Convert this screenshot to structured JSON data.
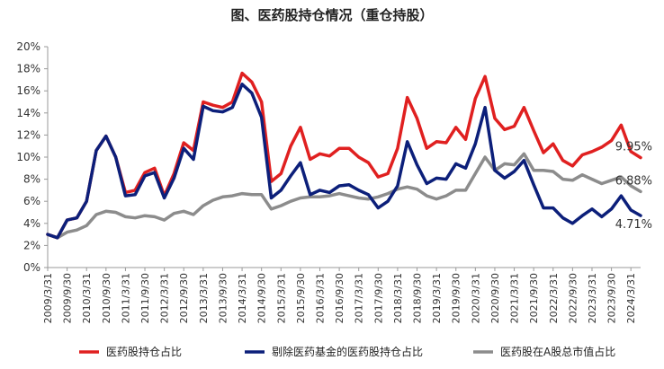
{
  "chart_data": {
    "type": "line",
    "title": "图、医药股持仓情况（重仓持股）",
    "ylim": [
      0,
      20
    ],
    "y_ticks": [
      "0%",
      "2%",
      "4%",
      "6%",
      "8%",
      "10%",
      "12%",
      "14%",
      "16%",
      "18%",
      "20%"
    ],
    "x_tick_labels": [
      "2009/3/31",
      "2009/9/30",
      "2010/3/31",
      "2010/9/30",
      "2011/3/31",
      "2011/9/30",
      "2012/3/31",
      "2012/9/30",
      "2013/3/31",
      "2013/9/30",
      "2014/3/31",
      "2014/9/30",
      "2015/3/31",
      "2015/9/30",
      "2016/3/31",
      "2016/9/30",
      "2017/3/31",
      "2017/9/30",
      "2018/3/31",
      "2018/9/30",
      "2019/3/31",
      "2019/9/30",
      "2020/3/31",
      "2020/9/30",
      "2021/3/31",
      "2021/9/30",
      "2022/3/31",
      "2022/9/30",
      "2023/3/31",
      "2023/9/30",
      "2024/3/31"
    ],
    "x": [
      "2009Q1",
      "2009Q2",
      "2009Q3",
      "2009Q4",
      "2010Q1",
      "2010Q2",
      "2010Q3",
      "2010Q4",
      "2011Q1",
      "2011Q2",
      "2011Q3",
      "2011Q4",
      "2012Q1",
      "2012Q2",
      "2012Q3",
      "2012Q4",
      "2013Q1",
      "2013Q2",
      "2013Q3",
      "2013Q4",
      "2014Q1",
      "2014Q2",
      "2014Q3",
      "2014Q4",
      "2015Q1",
      "2015Q2",
      "2015Q3",
      "2015Q4",
      "2016Q1",
      "2016Q2",
      "2016Q3",
      "2016Q4",
      "2017Q1",
      "2017Q2",
      "2017Q3",
      "2017Q4",
      "2018Q1",
      "2018Q2",
      "2018Q3",
      "2018Q4",
      "2019Q1",
      "2019Q2",
      "2019Q3",
      "2019Q4",
      "2020Q1",
      "2020Q2",
      "2020Q3",
      "2020Q4",
      "2021Q1",
      "2021Q2",
      "2021Q3",
      "2021Q4",
      "2022Q1",
      "2022Q2",
      "2022Q3",
      "2022Q4",
      "2023Q1",
      "2023Q2",
      "2023Q3",
      "2023Q4",
      "2024Q1",
      "2024Q2"
    ],
    "series": [
      {
        "name": "医药股持仓占比",
        "color": "#e02020",
        "end_label": "9.95%",
        "values": [
          3.0,
          2.7,
          4.3,
          4.5,
          6.0,
          10.6,
          11.9,
          10.0,
          6.8,
          7.0,
          8.6,
          9.0,
          6.5,
          8.5,
          11.3,
          10.6,
          15.0,
          14.7,
          14.5,
          15.0,
          17.6,
          16.8,
          15.0,
          7.8,
          8.5,
          11.0,
          12.7,
          9.8,
          10.3,
          10.1,
          10.8,
          10.8,
          10.0,
          9.5,
          8.2,
          8.5,
          10.8,
          15.4,
          13.5,
          10.8,
          11.4,
          11.3,
          12.7,
          11.6,
          15.3,
          17.3,
          13.5,
          12.5,
          12.8,
          14.5,
          12.4,
          10.4,
          11.2,
          9.7,
          9.2,
          10.2,
          10.5,
          10.9,
          11.5,
          12.9,
          10.5,
          9.95
        ]
      },
      {
        "name": "剔除医药基金的医药股持仓占比",
        "color": "#0c1f7a",
        "end_label": "4.71%",
        "values": [
          3.0,
          2.7,
          4.3,
          4.5,
          6.0,
          10.6,
          11.9,
          10.0,
          6.5,
          6.6,
          8.3,
          8.6,
          6.3,
          8.1,
          10.8,
          9.8,
          14.6,
          14.2,
          14.1,
          14.5,
          16.6,
          15.8,
          13.6,
          6.3,
          7.0,
          8.3,
          9.5,
          6.6,
          7.0,
          6.8,
          7.4,
          7.5,
          7.0,
          6.6,
          5.4,
          6.0,
          7.4,
          11.4,
          9.3,
          7.6,
          8.1,
          8.0,
          9.4,
          9.0,
          11.2,
          14.5,
          8.8,
          8.1,
          8.7,
          9.7,
          7.5,
          5.4,
          5.4,
          4.5,
          4.0,
          4.7,
          5.3,
          4.6,
          5.3,
          6.5,
          5.2,
          4.71
        ]
      },
      {
        "name": "医药股在A股总市值占比",
        "color": "#8c8c8c",
        "end_label": "6.88%",
        "values": [
          3.0,
          2.7,
          3.2,
          3.4,
          3.8,
          4.8,
          5.1,
          5.0,
          4.6,
          4.5,
          4.7,
          4.6,
          4.3,
          4.9,
          5.1,
          4.8,
          5.6,
          6.1,
          6.4,
          6.5,
          6.7,
          6.6,
          6.6,
          5.3,
          5.6,
          6.0,
          6.3,
          6.4,
          6.4,
          6.5,
          6.7,
          6.5,
          6.3,
          6.2,
          6.4,
          6.7,
          7.1,
          7.3,
          7.1,
          6.5,
          6.2,
          6.5,
          7.0,
          7.0,
          8.5,
          10.0,
          8.8,
          9.4,
          9.3,
          10.3,
          8.8,
          8.8,
          8.7,
          8.0,
          7.9,
          8.4,
          8.0,
          7.6,
          7.9,
          8.2,
          7.4,
          6.88
        ]
      }
    ],
    "legend_position": "bottom",
    "grid": false
  }
}
